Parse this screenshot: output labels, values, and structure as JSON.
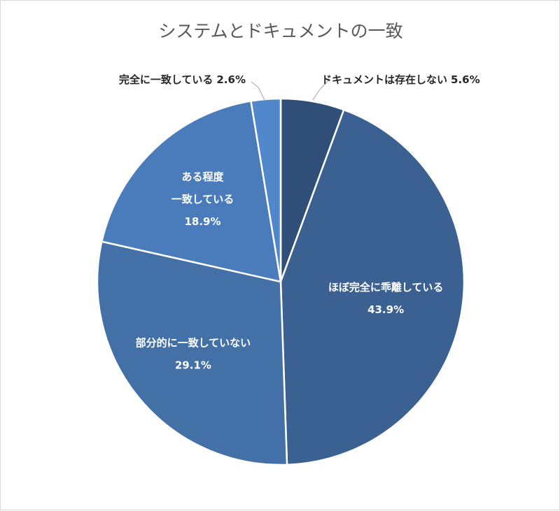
{
  "chart_data": {
    "type": "pie",
    "title": "システムとドキュメントの一致",
    "start_angle_deg": 0,
    "direction": "clockwise",
    "slices": [
      {
        "label": "ドキュメントは存在しない",
        "value": 5.6,
        "value_label": "5.6%",
        "color": "#2f4f78",
        "label_position": "outside"
      },
      {
        "label": "ほぼ完全に乖離している",
        "value": 43.9,
        "value_label": "43.9%",
        "color": "#3b6193",
        "label_position": "inside"
      },
      {
        "label": "部分的に一致していない",
        "value": 29.1,
        "value_label": "29.1%",
        "color": "#4470a8",
        "label_position": "inside"
      },
      {
        "label": "ある程度一致している",
        "value": 18.9,
        "value_label": "18.9%",
        "color": "#4a7cbc",
        "label_position": "inside"
      },
      {
        "label": "完全に一致している",
        "value": 2.6,
        "value_label": "2.6%",
        "color": "#5187cb",
        "label_position": "outside"
      }
    ],
    "legend": "none"
  }
}
